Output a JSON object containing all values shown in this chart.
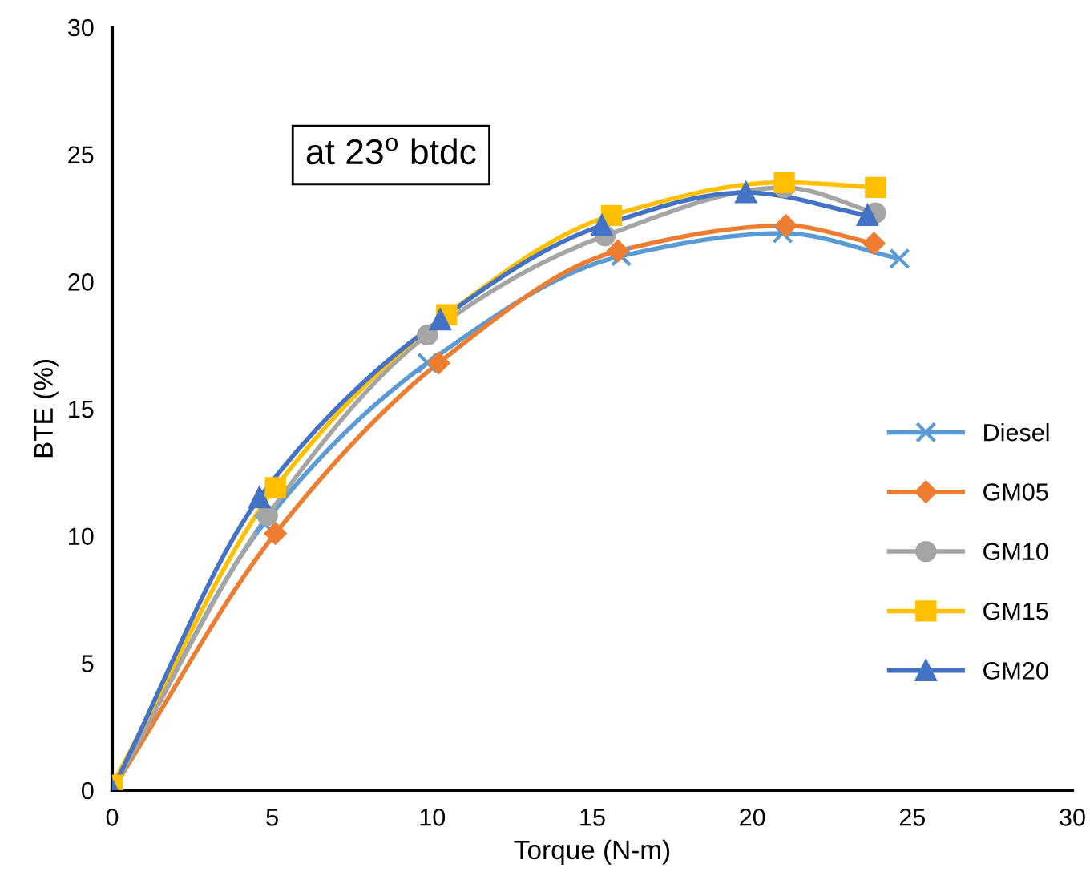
{
  "chart_data": {
    "type": "line",
    "xlabel": "Torque (N-m)",
    "ylabel": "BTE (%)",
    "xlim": [
      0,
      30
    ],
    "xticks": [
      0,
      5,
      10,
      15,
      20,
      25,
      30
    ],
    "ylim": [
      0,
      30
    ],
    "yticks": [
      0,
      5,
      10,
      15,
      20,
      25,
      30
    ],
    "grid": false,
    "legend": "right",
    "line_style": "solid",
    "annotations": [
      "at 23$^{o}$ btdc"
    ],
    "series": [
      {
        "name": "Diesel",
        "color": "#5b9bd5",
        "marker": "cross",
        "x": [
          0,
          4.75,
          9.85,
          15.9,
          20.95,
          24.6
        ],
        "values": [
          0,
          10.5,
          16.8,
          21.0,
          21.9,
          20.9
        ]
      },
      {
        "name": "GM05",
        "color": "#ed7d31",
        "marker": "diamond",
        "x": [
          0,
          5.1,
          10.2,
          15.8,
          21.05,
          23.8
        ],
        "values": [
          0,
          10.1,
          16.8,
          21.2,
          22.2,
          21.5
        ]
      },
      {
        "name": "GM10",
        "color": "#a5a5a5",
        "marker": "circle",
        "x": [
          0,
          4.85,
          9.85,
          15.4,
          21.0,
          23.85
        ],
        "values": [
          0,
          10.8,
          17.9,
          21.8,
          23.7,
          22.7
        ]
      },
      {
        "name": "GM15",
        "color": "#ffc000",
        "marker": "square",
        "x": [
          0,
          5.1,
          10.45,
          15.6,
          21.0,
          23.85
        ],
        "values": [
          0.2,
          11.9,
          18.7,
          22.6,
          23.9,
          23.7
        ]
      },
      {
        "name": "GM20",
        "color": "#4472c4",
        "marker": "triangle",
        "x": [
          0,
          4.6,
          10.25,
          15.3,
          19.8,
          23.6
        ],
        "values": [
          0,
          11.5,
          18.5,
          22.2,
          23.5,
          22.6
        ]
      }
    ]
  }
}
